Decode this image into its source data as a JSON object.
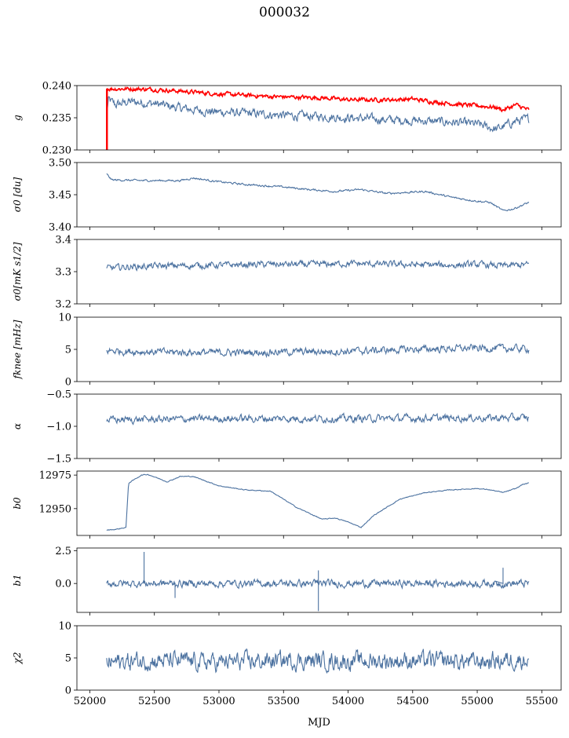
{
  "figure": {
    "title": "000032",
    "xlabel": "MJD",
    "xlim": [
      51900,
      55650
    ],
    "xticks": [
      52000,
      52500,
      53000,
      53500,
      54000,
      54500,
      55000,
      55500
    ],
    "xtick_labels": [
      "52000",
      "52500",
      "53000",
      "53500",
      "54000",
      "54500",
      "55000",
      "55500"
    ]
  },
  "chart_data": [
    {
      "type": "line",
      "ylabel": "g",
      "ylim": [
        0.23,
        0.24
      ],
      "yticks": [
        0.23,
        0.235,
        0.24
      ],
      "ytick_labels": [
        "0.230",
        "0.235",
        "0.240"
      ],
      "x_range": [
        52130,
        55400
      ],
      "series": [
        {
          "color": "#4c72a0",
          "noise": 0.00055,
          "values": [
            [
              52130,
              0.2355
            ],
            [
              52145,
              0.2378
            ],
            [
              52200,
              0.237
            ],
            [
              52300,
              0.2375
            ],
            [
              52500,
              0.2372
            ],
            [
              52700,
              0.2365
            ],
            [
              52900,
              0.236
            ],
            [
              53100,
              0.2358
            ],
            [
              53400,
              0.2355
            ],
            [
              53600,
              0.2353
            ],
            [
              53800,
              0.2352
            ],
            [
              54000,
              0.235
            ],
            [
              54300,
              0.2347
            ],
            [
              54600,
              0.2345
            ],
            [
              54800,
              0.2343
            ],
            [
              55000,
              0.234
            ],
            [
              55150,
              0.2332
            ],
            [
              55300,
              0.2345
            ],
            [
              55400,
              0.2348
            ]
          ]
        },
        {
          "color": "#ff0000",
          "noise": 0.00025,
          "values": [
            [
              52130,
              0.2395
            ],
            [
              52300,
              0.2395
            ],
            [
              52500,
              0.2394
            ],
            [
              52800,
              0.239
            ],
            [
              53000,
              0.2387
            ],
            [
              53200,
              0.2385
            ],
            [
              53400,
              0.2383
            ],
            [
              53600,
              0.2382
            ],
            [
              53800,
              0.2381
            ],
            [
              54000,
              0.2378
            ],
            [
              54300,
              0.2378
            ],
            [
              54500,
              0.2379
            ],
            [
              54700,
              0.2374
            ],
            [
              54900,
              0.237
            ],
            [
              55050,
              0.2368
            ],
            [
              55150,
              0.2366
            ],
            [
              55200,
              0.2362
            ],
            [
              55300,
              0.237
            ],
            [
              55400,
              0.2362
            ]
          ]
        }
      ]
    },
    {
      "type": "line",
      "ylabel": "σ0 [du]",
      "ylim": [
        3.4,
        3.5
      ],
      "yticks": [
        3.4,
        3.45,
        3.5
      ],
      "ytick_labels": [
        "3.40",
        "3.45",
        "3.50"
      ],
      "x_range": [
        52130,
        55400
      ],
      "series": [
        {
          "color": "#4c72a0",
          "noise": 0.0012,
          "values": [
            [
              52130,
              3.482
            ],
            [
              52170,
              3.473
            ],
            [
              52400,
              3.472
            ],
            [
              52700,
              3.472
            ],
            [
              52800,
              3.476
            ],
            [
              53000,
              3.47
            ],
            [
              53200,
              3.466
            ],
            [
              53500,
              3.462
            ],
            [
              53700,
              3.458
            ],
            [
              53900,
              3.455
            ],
            [
              54100,
              3.458
            ],
            [
              54300,
              3.452
            ],
            [
              54500,
              3.454
            ],
            [
              54600,
              3.455
            ],
            [
              54800,
              3.446
            ],
            [
              55000,
              3.44
            ],
            [
              55100,
              3.438
            ],
            [
              55200,
              3.425
            ],
            [
              55280,
              3.428
            ],
            [
              55400,
              3.438
            ]
          ]
        }
      ]
    },
    {
      "type": "line",
      "ylabel": "σ0[mK s1/2]",
      "ylim": [
        3.2,
        3.4
      ],
      "yticks": [
        3.2,
        3.3,
        3.4
      ],
      "ytick_labels": [
        "3.2",
        "3.3",
        "3.4"
      ],
      "x_range": [
        52130,
        55400
      ],
      "series": [
        {
          "color": "#4c72a0",
          "noise": 0.008,
          "values": [
            [
              52130,
              3.31
            ],
            [
              52300,
              3.315
            ],
            [
              52600,
              3.318
            ],
            [
              53000,
              3.32
            ],
            [
              53400,
              3.323
            ],
            [
              53700,
              3.322
            ],
            [
              54000,
              3.325
            ],
            [
              54400,
              3.322
            ],
            [
              54800,
              3.32
            ],
            [
              55000,
              3.322
            ],
            [
              55200,
              3.318
            ],
            [
              55400,
              3.322
            ]
          ]
        }
      ]
    },
    {
      "type": "line",
      "ylabel": "fknee [mHz]",
      "ylim": [
        0,
        10
      ],
      "yticks": [
        0,
        5,
        10
      ],
      "ytick_labels": [
        "0",
        "5",
        "10"
      ],
      "x_range": [
        52130,
        55400
      ],
      "series": [
        {
          "color": "#4c72a0",
          "noise": 0.45,
          "values": [
            [
              52130,
              4.8
            ],
            [
              52500,
              4.6
            ],
            [
              53000,
              4.5
            ],
            [
              53500,
              4.6
            ],
            [
              54000,
              4.7
            ],
            [
              54500,
              5.0
            ],
            [
              55000,
              5.2
            ],
            [
              55400,
              5.1
            ]
          ]
        }
      ]
    },
    {
      "type": "line",
      "ylabel": "α",
      "ylim": [
        -1.5,
        -0.5
      ],
      "yticks": [
        -1.5,
        -1.0,
        -0.5
      ],
      "ytick_labels": [
        "−1.5",
        "−1.0",
        "−0.5"
      ],
      "x_range": [
        52130,
        55400
      ],
      "series": [
        {
          "color": "#4c72a0",
          "noise": 0.045,
          "values": [
            [
              52130,
              -0.9
            ],
            [
              53000,
              -0.88
            ],
            [
              54000,
              -0.88
            ],
            [
              55000,
              -0.87
            ],
            [
              55400,
              -0.87
            ]
          ]
        }
      ]
    },
    {
      "type": "line",
      "ylabel": "b0",
      "ylim": [
        12930,
        12978
      ],
      "yticks": [
        12950,
        12975
      ],
      "ytick_labels": [
        "12950",
        "12975"
      ],
      "x_range": [
        52130,
        55400
      ],
      "series": [
        {
          "color": "#4c72a0",
          "noise": 0.25,
          "values": [
            [
              52130,
              12934
            ],
            [
              52200,
              12934.5
            ],
            [
              52280,
              12936
            ],
            [
              52300,
              12969
            ],
            [
              52400,
              12975
            ],
            [
              52450,
              12975.5
            ],
            [
              52600,
              12970
            ],
            [
              52700,
              12974
            ],
            [
              52800,
              12974
            ],
            [
              53000,
              12967
            ],
            [
              53200,
              12964
            ],
            [
              53400,
              12963
            ],
            [
              53600,
              12951
            ],
            [
              53800,
              12942
            ],
            [
              53900,
              12943
            ],
            [
              54000,
              12940
            ],
            [
              54100,
              12936
            ],
            [
              54200,
              12945
            ],
            [
              54400,
              12957
            ],
            [
              54600,
              12962
            ],
            [
              54800,
              12964
            ],
            [
              55000,
              12965
            ],
            [
              55100,
              12964
            ],
            [
              55200,
              12962
            ],
            [
              55300,
              12965
            ],
            [
              55350,
              12968
            ],
            [
              55400,
              12969
            ]
          ]
        }
      ]
    },
    {
      "type": "line",
      "ylabel": "b1",
      "ylim": [
        -2.2,
        2.7
      ],
      "yticks": [
        0.0,
        2.5
      ],
      "ytick_labels": [
        "0.0",
        "2.5"
      ],
      "x_range": [
        52130,
        55400
      ],
      "series": [
        {
          "color": "#4c72a0",
          "noise": 0.22,
          "spikes": [
            [
              52420,
              2.4
            ],
            [
              52660,
              -1.1
            ],
            [
              53770,
              -2.1
            ],
            [
              53770,
              1.0
            ],
            [
              55200,
              1.2
            ]
          ],
          "values": [
            [
              52130,
              0.0
            ],
            [
              53000,
              0.0
            ],
            [
              54000,
              0.0
            ],
            [
              55000,
              0.0
            ],
            [
              55400,
              0.0
            ]
          ]
        }
      ]
    },
    {
      "type": "line",
      "ylabel": "χ2",
      "ylim": [
        0,
        10
      ],
      "yticks": [
        0,
        5,
        10
      ],
      "ytick_labels": [
        "0",
        "5",
        "10"
      ],
      "x_range": [
        52130,
        55400
      ],
      "series": [
        {
          "color": "#4c72a0",
          "noise": 1.1,
          "values": [
            [
              52130,
              4.3
            ],
            [
              52500,
              4.6
            ],
            [
              53000,
              4.3
            ],
            [
              53500,
              4.6
            ],
            [
              54000,
              4.5
            ],
            [
              54500,
              4.6
            ],
            [
              55000,
              4.4
            ],
            [
              55400,
              4.8
            ]
          ]
        }
      ]
    }
  ]
}
